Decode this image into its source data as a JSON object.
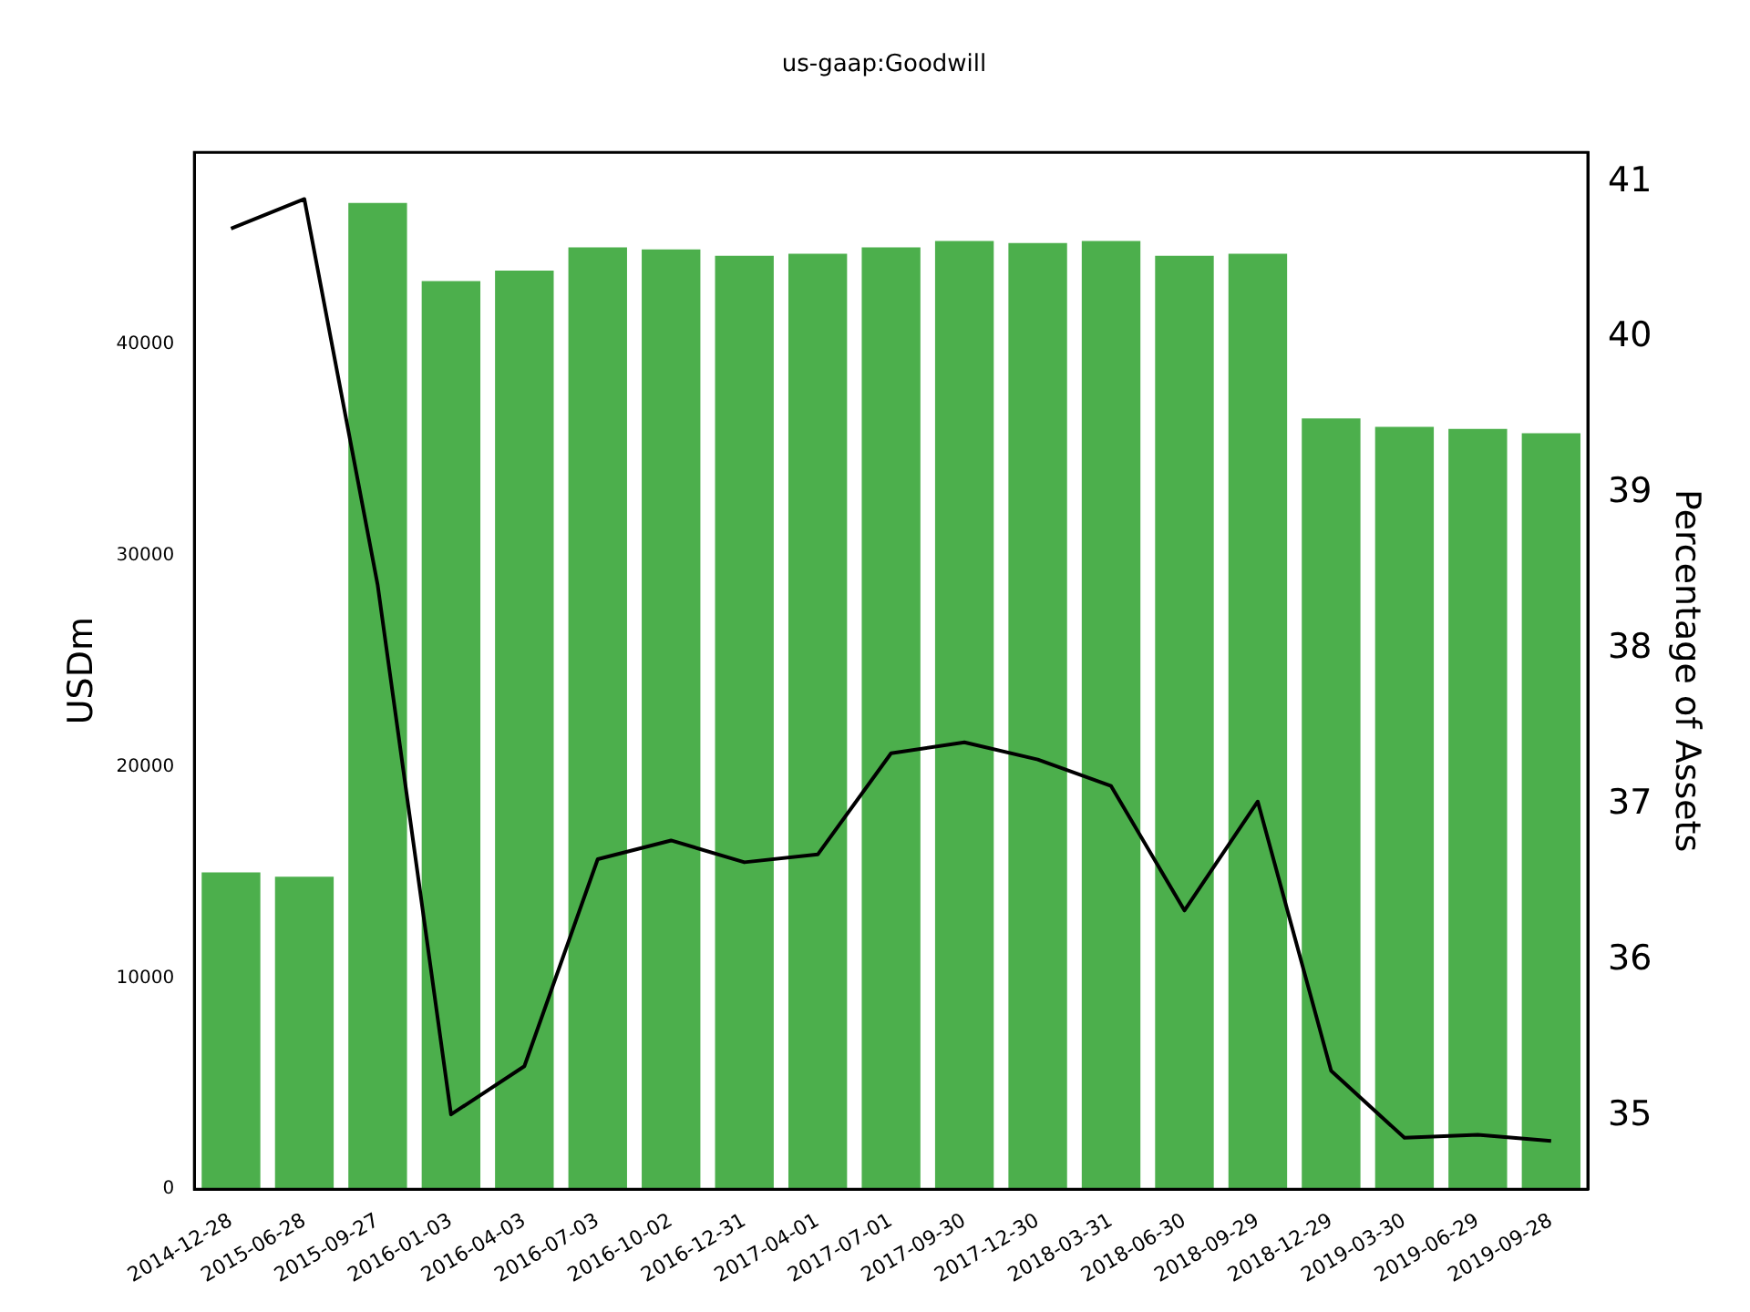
{
  "chart_data": {
    "type": "bar",
    "title": "us-gaap:Goodwill",
    "ylabel": "USDm",
    "y2label": "Percentage of Assets",
    "categories": [
      "2014-12-28",
      "2015-06-28",
      "2015-09-27",
      "2016-01-03",
      "2016-04-03",
      "2016-07-03",
      "2016-10-02",
      "2016-12-31",
      "2017-04-01",
      "2017-07-01",
      "2017-09-30",
      "2017-12-30",
      "2018-03-31",
      "2018-06-30",
      "2018-09-29",
      "2018-12-29",
      "2019-03-30",
      "2019-06-29",
      "2019-09-28"
    ],
    "series": [
      {
        "color": "#4caf4c",
        "values": [
          15000,
          14800,
          46700,
          43000,
          43500,
          44600,
          44500,
          44200,
          44300,
          44600,
          44900,
          44800,
          44900,
          44200,
          44300,
          36500,
          36100,
          36000,
          35800
        ]
      },
      {
        "type": "line",
        "axis": "y2",
        "color": "#000000",
        "values": [
          40.7,
          40.89,
          38.41,
          35.01,
          35.32,
          36.65,
          36.77,
          36.63,
          36.68,
          37.33,
          37.4,
          37.29,
          37.12,
          36.32,
          37.02,
          35.29,
          34.86,
          34.88,
          34.84
        ]
      }
    ],
    "ylim": [
      0,
      49100
    ],
    "yticks": [
      0,
      10000,
      20000,
      30000,
      40000
    ],
    "y2lim": [
      34.53,
      41.19
    ],
    "y2ticks": [
      35,
      36,
      37,
      38,
      39,
      40,
      41
    ],
    "grid": false,
    "legend": false
  }
}
